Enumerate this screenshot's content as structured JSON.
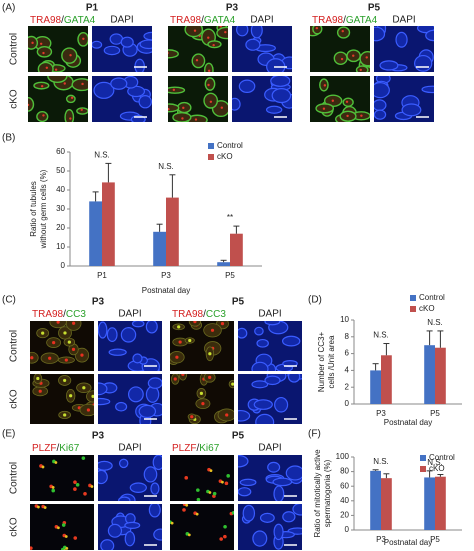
{
  "panels": {
    "A": {
      "label": "(A)",
      "columns": [
        "P1",
        "P3",
        "P5"
      ],
      "merge_label": [
        "TRA98",
        "/",
        "GATA4"
      ],
      "dapi_label": "DAPI",
      "rows": [
        "Control",
        "cKO"
      ]
    },
    "C": {
      "label": "(C)",
      "columns": [
        "P3",
        "P5"
      ],
      "merge_label": [
        "TRA98",
        "/",
        "CC3"
      ],
      "dapi_label": "DAPI",
      "rows": [
        "Control",
        "cKO"
      ]
    },
    "E": {
      "label": "(E)",
      "columns": [
        "P3",
        "P5"
      ],
      "merge_label": [
        "PLZF",
        "/",
        "Ki67"
      ],
      "dapi_label": "DAPI",
      "rows": [
        "Control",
        "cKO"
      ]
    }
  },
  "chart_data": [
    {
      "type": "bar",
      "panel_label": "(B)",
      "ylabel": [
        "Ratio of tubules",
        "without germ cells (%)"
      ],
      "xlabel": "Postnatal day",
      "categories": [
        "P1",
        "P3",
        "P5"
      ],
      "series": [
        {
          "name": "Control",
          "color": "#4472c4",
          "values": [
            34,
            18,
            2
          ],
          "errors": [
            5,
            4,
            1
          ]
        },
        {
          "name": "cKO",
          "color": "#c0504d",
          "values": [
            44,
            36,
            17
          ],
          "errors": [
            10,
            12,
            4
          ]
        }
      ],
      "annotations": [
        "N.S.",
        "N.S.",
        "**"
      ],
      "ylim": [
        0,
        60
      ],
      "yticks": [
        0,
        10,
        20,
        30,
        40,
        50,
        60
      ]
    },
    {
      "type": "bar",
      "panel_label": "(D)",
      "ylabel": [
        "Number of CC3+",
        "cells /Unit area"
      ],
      "xlabel": "Postnatal day",
      "categories": [
        "P3",
        "P5"
      ],
      "series": [
        {
          "name": "Control",
          "color": "#4472c4",
          "values": [
            4.0,
            7.0
          ],
          "errors": [
            0.8,
            1.7
          ]
        },
        {
          "name": "cKO",
          "color": "#c0504d",
          "values": [
            5.8,
            6.7
          ],
          "errors": [
            1.4,
            2.0
          ]
        }
      ],
      "annotations": [
        "N.S.",
        "N.S."
      ],
      "ylim": [
        0,
        10
      ],
      "yticks": [
        0,
        2,
        4,
        6,
        8,
        10
      ]
    },
    {
      "type": "bar",
      "panel_label": "(F)",
      "ylabel": [
        "Ratio of mitotically active",
        "spermatogonia (%)"
      ],
      "xlabel": "Postnatal day",
      "categories": [
        "P3",
        "P5"
      ],
      "series": [
        {
          "name": "Control",
          "color": "#4472c4",
          "values": [
            81,
            72
          ],
          "errors": [
            1.5,
            9
          ]
        },
        {
          "name": "cKO",
          "color": "#c0504d",
          "values": [
            71,
            73
          ],
          "errors": [
            6,
            3
          ]
        }
      ],
      "annotations": [
        "N.S.",
        "N.S."
      ],
      "ylim": [
        0,
        100
      ],
      "yticks": [
        0,
        20,
        40,
        60,
        80,
        100
      ]
    }
  ]
}
